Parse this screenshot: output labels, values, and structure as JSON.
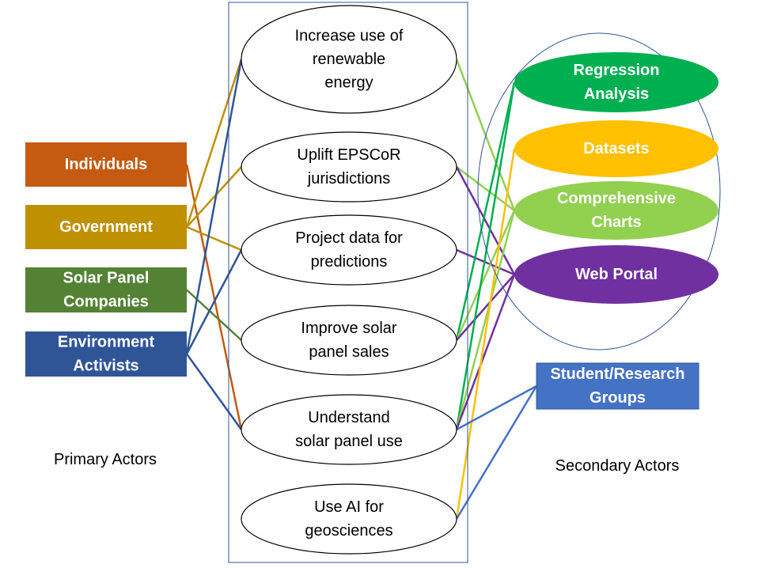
{
  "primary_actors": {
    "caption": "Primary Actors",
    "items": [
      {
        "key": "individuals",
        "lines": [
          "Individuals"
        ],
        "color": "#C55A11"
      },
      {
        "key": "government",
        "lines": [
          "Government"
        ],
        "color": "#BF9000"
      },
      {
        "key": "solar",
        "lines": [
          "Solar Panel",
          "Companies"
        ],
        "color": "#548235"
      },
      {
        "key": "env",
        "lines": [
          "Environment",
          "Activists"
        ],
        "color": "#2F5597"
      }
    ]
  },
  "use_cases": [
    {
      "key": "uc1",
      "lines": [
        "Increase use of",
        "renewable",
        "energy"
      ]
    },
    {
      "key": "uc2",
      "lines": [
        "Uplift EPSCoR",
        "jurisdictions"
      ]
    },
    {
      "key": "uc3",
      "lines": [
        "Project data for",
        "predictions"
      ]
    },
    {
      "key": "uc4",
      "lines": [
        "Improve solar",
        "panel sales"
      ]
    },
    {
      "key": "uc5",
      "lines": [
        "Understand",
        "solar panel use"
      ]
    },
    {
      "key": "uc6",
      "lines": [
        "Use AI for",
        "geosciences"
      ]
    }
  ],
  "features": [
    {
      "key": "regression",
      "lines": [
        "Regression",
        "Analysis"
      ],
      "color": "#00B050"
    },
    {
      "key": "datasets",
      "lines": [
        "Datasets"
      ],
      "color": "#FFC000"
    },
    {
      "key": "charts",
      "lines": [
        "Comprehensive",
        "Charts"
      ],
      "color": "#92D050"
    },
    {
      "key": "portal",
      "lines": [
        "Web Portal"
      ],
      "color": "#7030A0"
    }
  ],
  "secondary_actors": {
    "caption": "Secondary Actors",
    "items": [
      {
        "key": "student",
        "lines": [
          "Student/Research",
          "Groups"
        ],
        "color": "#4472C4"
      }
    ]
  },
  "actor_links": [
    {
      "from": "individuals",
      "to": "uc5",
      "color": "#C55A11"
    },
    {
      "from": "government",
      "to": "uc1",
      "color": "#BF9000"
    },
    {
      "from": "government",
      "to": "uc2",
      "color": "#BF9000"
    },
    {
      "from": "government",
      "to": "uc3",
      "color": "#BF9000"
    },
    {
      "from": "solar",
      "to": "uc4",
      "color": "#548235"
    },
    {
      "from": "env",
      "to": "uc1",
      "color": "#2F5597"
    },
    {
      "from": "env",
      "to": "uc3",
      "color": "#2F5597"
    },
    {
      "from": "env",
      "to": "uc5",
      "color": "#2F5597"
    }
  ],
  "feature_links": [
    {
      "from": "uc1",
      "to": "charts",
      "color": "#92D050"
    },
    {
      "from": "uc2",
      "to": "charts",
      "color": "#92D050"
    },
    {
      "from": "uc2",
      "to": "portal",
      "color": "#7030A0"
    },
    {
      "from": "uc3",
      "to": "portal",
      "color": "#7030A0"
    },
    {
      "from": "uc4",
      "to": "regression",
      "color": "#00B050"
    },
    {
      "from": "uc4",
      "to": "charts",
      "color": "#92D050"
    },
    {
      "from": "uc4",
      "to": "portal",
      "color": "#7030A0"
    },
    {
      "from": "uc5",
      "to": "regression",
      "color": "#00B050"
    },
    {
      "from": "uc5",
      "to": "charts",
      "color": "#92D050"
    },
    {
      "from": "uc5",
      "to": "portal",
      "color": "#7030A0"
    },
    {
      "from": "uc6",
      "to": "datasets",
      "color": "#FFC000"
    },
    {
      "from": "uc6",
      "to": "student",
      "color": "#4472C4"
    },
    {
      "from": "uc5",
      "to": "student",
      "color": "#4472C4"
    }
  ]
}
